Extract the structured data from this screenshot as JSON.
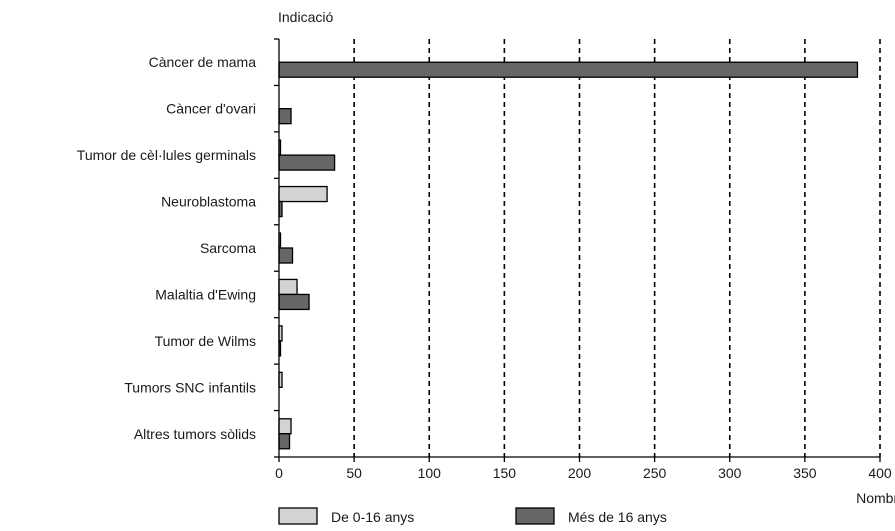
{
  "chart_data": {
    "type": "bar",
    "orientation": "horizontal",
    "title": "",
    "ylabel": "Indicació",
    "xlabel": "Nombre",
    "xlim": [
      0,
      400
    ],
    "xticks": [
      0,
      50,
      100,
      150,
      200,
      250,
      300,
      350,
      400
    ],
    "grid": "vertical dashed",
    "legend_position": "bottom",
    "categories": [
      "Càncer de mama",
      "Càncer d'ovari",
      "Tumor de cèl·lules germinals",
      "Neuroblastoma",
      "Sarcoma",
      "Malaltia d'Ewing",
      "Tumor de Wilms",
      "Tumors SNC infantils",
      "Altres tumors sòlids"
    ],
    "series": [
      {
        "name": "De 0-16 anys",
        "color": "#d3d3d3",
        "values": [
          0,
          0,
          1,
          32,
          1,
          12,
          2,
          2,
          8
        ]
      },
      {
        "name": "Més de 16 anys",
        "color": "#666666",
        "values": [
          385,
          8,
          37,
          2,
          9,
          20,
          1,
          0,
          7
        ]
      }
    ]
  }
}
